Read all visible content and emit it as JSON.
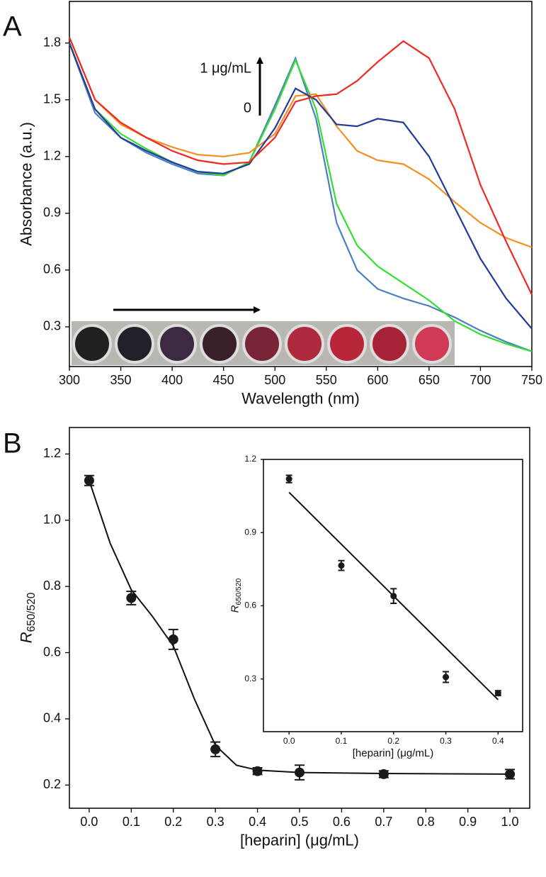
{
  "chart_data": [
    {
      "type": "line",
      "panel_label": "A",
      "x_label": "Wavelength (nm)",
      "y_label": "Absorbance (a.u.)",
      "annotations": [
        "1 μg/mL",
        "0"
      ],
      "x": [
        300,
        325,
        350,
        375,
        400,
        425,
        450,
        475,
        500,
        520,
        540,
        560,
        580,
        600,
        625,
        650,
        675,
        700,
        725,
        750
      ],
      "series": [
        {
          "color": "#4a7fc1",
          "values": [
            1.8,
            1.43,
            1.3,
            1.22,
            1.16,
            1.11,
            1.1,
            1.17,
            1.47,
            1.72,
            1.4,
            0.85,
            0.6,
            0.5,
            0.45,
            0.41,
            0.35,
            0.28,
            0.22,
            0.17
          ]
        },
        {
          "color": "#33dd33",
          "values": [
            1.8,
            1.45,
            1.32,
            1.24,
            1.17,
            1.12,
            1.1,
            1.17,
            1.45,
            1.71,
            1.45,
            0.95,
            0.73,
            0.62,
            0.53,
            0.44,
            0.33,
            0.26,
            0.21,
            0.17
          ]
        },
        {
          "color": "#f39022",
          "values": [
            1.83,
            1.5,
            1.37,
            1.3,
            1.25,
            1.21,
            1.2,
            1.22,
            1.32,
            1.52,
            1.53,
            1.36,
            1.23,
            1.18,
            1.16,
            1.08,
            0.96,
            0.85,
            0.77,
            0.72
          ]
        },
        {
          "color": "#233a9a",
          "values": [
            1.8,
            1.45,
            1.3,
            1.23,
            1.17,
            1.12,
            1.11,
            1.16,
            1.35,
            1.56,
            1.5,
            1.37,
            1.36,
            1.4,
            1.38,
            1.2,
            0.93,
            0.66,
            0.45,
            0.29
          ]
        },
        {
          "color": "#ee2a22",
          "values": [
            1.83,
            1.5,
            1.38,
            1.3,
            1.23,
            1.18,
            1.16,
            1.17,
            1.3,
            1.49,
            1.52,
            1.53,
            1.6,
            1.7,
            1.81,
            1.72,
            1.45,
            1.05,
            0.75,
            0.47
          ]
        }
      ],
      "xlim": [
        300,
        750
      ],
      "xticks": [
        300,
        350,
        400,
        450,
        500,
        550,
        600,
        650,
        700,
        750
      ],
      "ylim": [
        0.09,
        2.02
      ],
      "yticks": [
        0.3,
        0.6,
        0.9,
        1.2,
        1.5,
        1.8
      ]
    },
    {
      "type": "scatter",
      "panel_label": "B",
      "x_label": "[heparin] (μg/mL)",
      "y_label": "R",
      "y_label_sub": "650/520",
      "x": [
        0,
        0.1,
        0.2,
        0.3,
        0.4,
        0.5,
        0.7,
        1
      ],
      "series": [
        {
          "color": "#1a1a1a",
          "values": [
            1.12,
            0.765,
            0.64,
            0.308,
            0.242,
            0.238,
            0.233,
            0.233
          ],
          "errors": [
            0.015,
            0.02,
            0.03,
            0.022,
            0.01,
            0.022,
            0.01,
            0.014
          ]
        }
      ],
      "fit": {
        "x": [
          0,
          0.05,
          0.1,
          0.15,
          0.2,
          0.25,
          0.3,
          0.35,
          0.4,
          0.5,
          0.7,
          1
        ],
        "values": [
          1.12,
          0.93,
          0.79,
          0.71,
          0.62,
          0.46,
          0.32,
          0.26,
          0.245,
          0.238,
          0.235,
          0.233
        ]
      },
      "xlim": [
        -0.047,
        1.047
      ],
      "xticks": [
        {
          "value": 0,
          "label": "0.0"
        },
        0.1,
        0.2,
        0.3,
        0.4,
        0.5,
        0.6,
        0.7,
        0.8,
        0.9,
        {
          "value": 1,
          "label": "1.0"
        }
      ],
      "ylim": [
        0.13,
        1.28
      ],
      "yticks": [
        0.2,
        0.4,
        0.6,
        0.8,
        {
          "value": 1,
          "label": "1.0"
        },
        1.2
      ]
    },
    {
      "type": "scatter",
      "x_label": "[heparin] (μg/mL)",
      "y_label": "R",
      "y_label_sub": "650/520",
      "x": [
        0,
        0.1,
        0.2,
        0.3,
        0.4
      ],
      "series": [
        {
          "color": "#1a1a1a",
          "values": [
            1.12,
            0.765,
            0.64,
            0.308,
            0.242
          ],
          "errors": [
            0.015,
            0.02,
            0.03,
            0.022,
            0.01
          ]
        }
      ],
      "fit": {
        "x": [
          0,
          0.4
        ],
        "values": [
          1.065,
          0.215
        ]
      },
      "xlim": [
        -0.049,
        0.447
      ],
      "xticks": [
        {
          "value": 0,
          "label": "0.0"
        },
        0.1,
        0.2,
        0.3,
        0.4
      ],
      "ylim": [
        0.084,
        1.2
      ],
      "yticks": [
        0.3,
        0.6,
        0.9,
        1.2
      ]
    }
  ]
}
